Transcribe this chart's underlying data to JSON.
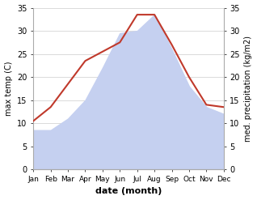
{
  "months": [
    "Jan",
    "Feb",
    "Mar",
    "Apr",
    "May",
    "Jun",
    "Jul",
    "Aug",
    "Sep",
    "Oct",
    "Nov",
    "Dec"
  ],
  "temp": [
    10.5,
    13.5,
    18.5,
    23.5,
    25.5,
    27.5,
    33.5,
    33.5,
    27.0,
    20.0,
    14.0,
    13.5
  ],
  "precip": [
    8.5,
    8.5,
    11.0,
    15.0,
    22.0,
    29.5,
    30.0,
    33.5,
    26.0,
    18.0,
    13.5,
    12.0
  ],
  "temp_color": "#c0392b",
  "precip_fill_color": "#c5d0f0",
  "ylim_left": [
    0,
    35
  ],
  "ylim_right": [
    0,
    35
  ],
  "xlabel": "date (month)",
  "ylabel_left": "max temp (C)",
  "ylabel_right": "med. precipitation (kg/m2)",
  "bg_color": "#ffffff",
  "grid_color": "#cccccc",
  "yticks": [
    0,
    5,
    10,
    15,
    20,
    25,
    30,
    35
  ]
}
